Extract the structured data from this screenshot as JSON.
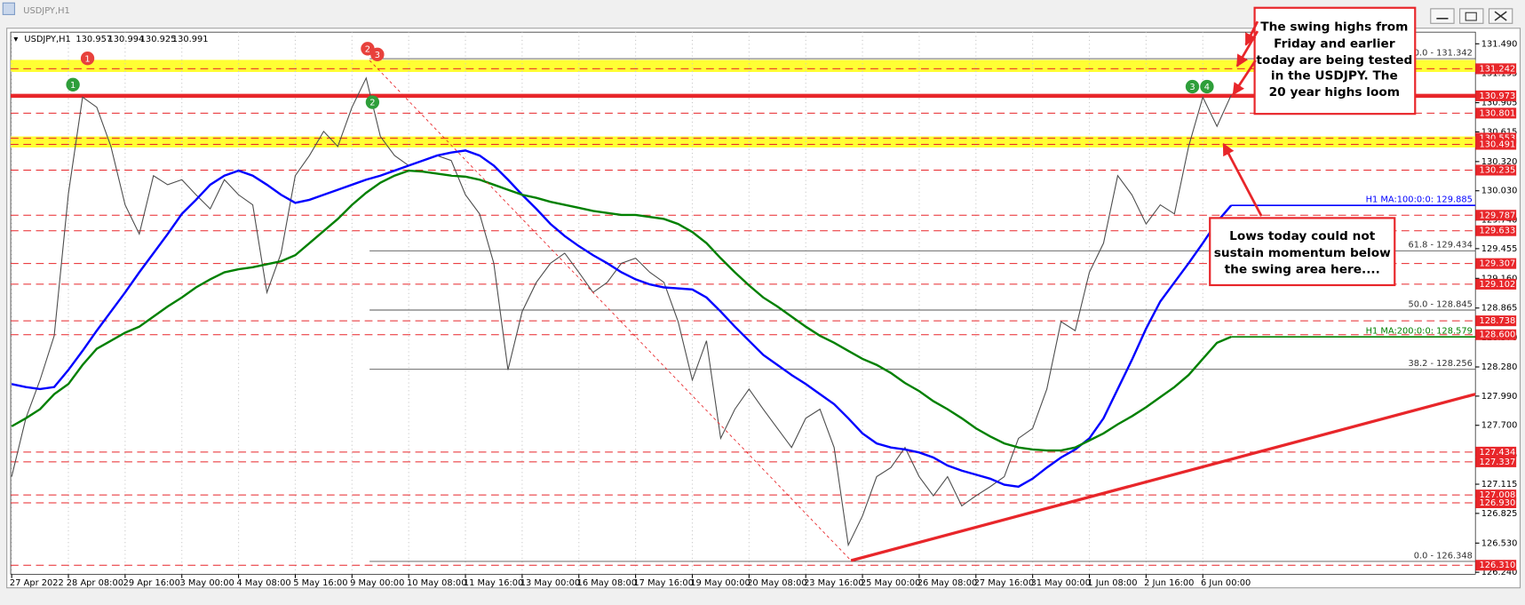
{
  "window_title": "USDJPY,H1",
  "info": {
    "symbol": "USDJPY,H1",
    "ohlc": [
      130.957,
      130.994,
      130.925,
      130.991
    ]
  },
  "chart_data": {
    "type": "line",
    "categories": [
      "27 Apr 2022",
      null,
      null,
      null,
      "28 Apr 08:00",
      null,
      null,
      null,
      "29 Apr 16:00",
      null,
      null,
      null,
      "3 May 00:00",
      null,
      null,
      null,
      "4 May 08:00",
      null,
      null,
      null,
      "5 May 16:00",
      null,
      null,
      null,
      "9 May 00:00",
      null,
      null,
      null,
      "10 May 08:00",
      null,
      null,
      null,
      "11 May 16:00",
      null,
      null,
      null,
      "13 May 00:00",
      null,
      null,
      null,
      "16 May 08:00",
      null,
      null,
      null,
      "17 May 16:00",
      null,
      null,
      null,
      "19 May 00:00",
      null,
      null,
      null,
      "20 May 08:00",
      null,
      null,
      null,
      "23 May 16:00",
      null,
      null,
      null,
      "25 May 00:00",
      null,
      null,
      null,
      "26 May 08:00",
      null,
      null,
      null,
      "27 May 16:00",
      null,
      null,
      null,
      "31 May 00:00",
      null,
      null,
      null,
      "1 Jun 08:00",
      null,
      null,
      null,
      "2 Jun 16:00",
      null,
      null,
      null,
      "6 Jun 00:00",
      null,
      null
    ],
    "series": [
      {
        "name": "USDJPY",
        "color": "#4d4d4d",
        "values": [
          127.19,
          127.77,
          128.15,
          128.59,
          130.0,
          130.96,
          130.86,
          130.47,
          129.89,
          129.6,
          130.18,
          130.09,
          130.14,
          129.99,
          129.85,
          130.14,
          129.99,
          129.89,
          129.02,
          129.41,
          130.18,
          130.38,
          130.62,
          130.47,
          130.86,
          131.15,
          130.57,
          130.38,
          130.28,
          130.33,
          130.38,
          130.33,
          129.99,
          129.8,
          129.31,
          128.25,
          128.83,
          129.12,
          129.31,
          129.41,
          129.22,
          129.02,
          129.12,
          129.31,
          129.36,
          129.22,
          129.12,
          128.73,
          128.15,
          128.54,
          127.57,
          127.86,
          128.06,
          127.86,
          127.67,
          127.48,
          127.77,
          127.86,
          127.48,
          126.51,
          126.8,
          127.19,
          127.28,
          127.48,
          127.19,
          127.0,
          127.19,
          126.9,
          127.0,
          127.09,
          127.19,
          127.57,
          127.67,
          128.06,
          128.73,
          128.64,
          129.22,
          129.51,
          130.18,
          129.99,
          129.7,
          129.89,
          129.8,
          130.47,
          130.96,
          130.67,
          130.98
        ]
      },
      {
        "name": "H1 MA:100:0:0:",
        "color": "#0000ff",
        "label": "H1 MA:100:0:0: 129.885",
        "values": [
          128.11,
          128.08,
          128.06,
          128.08,
          128.25,
          128.44,
          128.64,
          128.83,
          129.02,
          129.22,
          129.41,
          129.6,
          129.8,
          129.94,
          130.09,
          130.18,
          130.23,
          130.18,
          130.09,
          129.99,
          129.91,
          129.94,
          129.99,
          130.04,
          130.09,
          130.14,
          130.18,
          130.23,
          130.28,
          130.33,
          130.38,
          130.41,
          130.43,
          130.38,
          130.28,
          130.14,
          129.99,
          129.85,
          129.7,
          129.58,
          129.48,
          129.39,
          129.31,
          129.22,
          129.15,
          129.1,
          129.07,
          129.06,
          129.05,
          128.97,
          128.83,
          128.68,
          128.54,
          128.4,
          128.3,
          128.2,
          128.11,
          128.01,
          127.91,
          127.77,
          127.62,
          127.52,
          127.48,
          127.46,
          127.43,
          127.38,
          127.3,
          127.25,
          127.21,
          127.17,
          127.11,
          127.09,
          127.17,
          127.28,
          127.38,
          127.46,
          127.57,
          127.77,
          128.06,
          128.35,
          128.66,
          128.93,
          129.12,
          129.31,
          129.51,
          129.72,
          129.885
        ]
      },
      {
        "name": "H1 MA:200:0:0:",
        "color": "#008000",
        "label": "H1 MA:200:0:0: 128.579",
        "values": [
          127.69,
          127.77,
          127.86,
          128.01,
          128.11,
          128.3,
          128.46,
          128.54,
          128.62,
          128.68,
          128.78,
          128.88,
          128.97,
          129.07,
          129.15,
          129.22,
          129.25,
          129.27,
          129.3,
          129.33,
          129.39,
          129.51,
          129.63,
          129.75,
          129.89,
          130.01,
          130.11,
          130.18,
          130.23,
          130.22,
          130.2,
          130.18,
          130.17,
          130.14,
          130.09,
          130.04,
          129.99,
          129.96,
          129.92,
          129.89,
          129.86,
          129.83,
          129.81,
          129.79,
          129.79,
          129.77,
          129.75,
          129.7,
          129.62,
          129.51,
          129.36,
          129.22,
          129.09,
          128.97,
          128.88,
          128.78,
          128.68,
          128.59,
          128.52,
          128.44,
          128.36,
          128.3,
          128.22,
          128.12,
          128.04,
          127.94,
          127.86,
          127.77,
          127.67,
          127.59,
          127.52,
          127.48,
          127.46,
          127.45,
          127.45,
          127.48,
          127.55,
          127.62,
          127.71,
          127.79,
          127.88,
          127.98,
          128.08,
          128.2,
          128.36,
          128.52,
          128.579
        ]
      }
    ],
    "ylim": [
      126.221,
      131.606
    ],
    "yticks": [
      {
        "value": 131.49,
        "label": "131.490"
      },
      131.195,
      130.905,
      130.615,
      {
        "value": 130.32,
        "label": "130.320"
      },
      {
        "value": 130.03,
        "label": "130.030"
      },
      {
        "value": 129.74,
        "label": "129.740"
      },
      129.455,
      {
        "value": 129.16,
        "label": "129.160"
      },
      128.865,
      {
        "value": 128.57,
        "label": "128.570"
      },
      {
        "value": 128.28,
        "label": "128.280"
      },
      {
        "value": 127.99,
        "label": "127.990"
      },
      {
        "value": 127.7,
        "label": "127.700"
      },
      127.405,
      127.115,
      126.825,
      {
        "value": 126.53,
        "label": "126.530"
      },
      {
        "value": 126.24,
        "label": "126.240"
      }
    ],
    "grid": true,
    "zones": [
      {
        "from": 131.21,
        "to": 131.33,
        "color": "#ffff33"
      },
      {
        "from": 130.46,
        "to": 130.57,
        "color": "#ffff33"
      }
    ],
    "levels": [
      {
        "value": 131.242
      },
      {
        "value": 130.973,
        "style": "solid"
      },
      {
        "value": 130.801
      },
      {
        "value": 130.553
      },
      {
        "value": 130.491
      },
      {
        "value": 130.235
      },
      {
        "value": 129.787
      },
      {
        "value": 129.633
      },
      {
        "value": 129.307
      },
      {
        "value": 129.102
      },
      {
        "value": 128.738
      },
      {
        "value": 128.6,
        "label": "128.600"
      },
      {
        "value": 127.434
      },
      {
        "value": 127.337
      },
      {
        "value": 127.008
      },
      {
        "value": 126.93,
        "label": "126.930"
      },
      {
        "value": 126.31,
        "label": "126.310"
      }
    ],
    "level_color": "#e8262a",
    "fib_levels": [
      {
        "value": 131.342,
        "label": "100.0 - 131.342"
      },
      {
        "value": 129.434,
        "label": "61.8 - 129.434"
      },
      {
        "value": 128.845,
        "label": "50.0 - 128.845"
      },
      {
        "value": 128.256,
        "label": "38.2 - 128.256"
      },
      {
        "value": 126.348,
        "label": "0.0 - 126.348"
      }
    ],
    "markers": [
      {
        "label": "1",
        "color": "#2e9e3a"
      },
      {
        "label": "1",
        "color": "#e8413c"
      },
      {
        "label": "2",
        "color": "#e8413c"
      },
      {
        "label": "3",
        "color": "#e8413c"
      },
      {
        "label": "2",
        "color": "#2e9e3a"
      },
      {
        "label": "3",
        "color": "#2e9e3a"
      },
      {
        "label": "4",
        "color": "#2e9e3a"
      }
    ],
    "annotations": [
      {
        "lines": [
          "The swing highs from",
          "Friday and earlier",
          "today are being tested",
          "in the USDJPY.   The",
          "20 year highs loom"
        ]
      },
      {
        "lines": [
          "Lows today could not",
          "sustain momentum below",
          "the swing area here...."
        ]
      }
    ]
  }
}
